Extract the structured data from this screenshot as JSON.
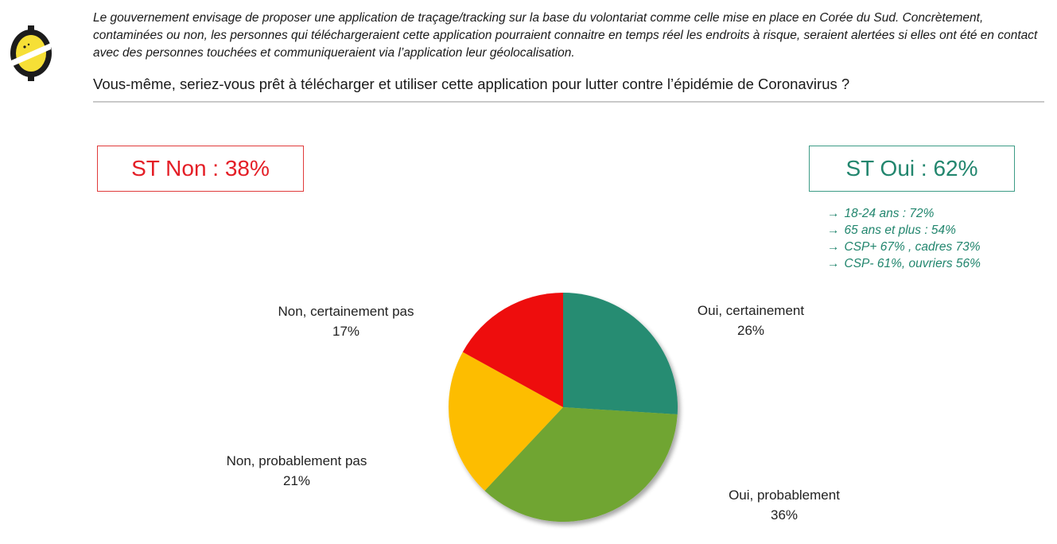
{
  "header": {
    "context_text": "Le gouvernement envisage de proposer une application de traçage/tracking sur la base du volontariat comme celle mise en place en Corée du Sud. Concrètement, contaminées ou non, les personnes qui téléchargeraient cette application pourraient connaitre en temps réel les endroits à risque, seraient alertées si elles ont été en contact avec des personnes touchées et communiqueraient via l’application leur géolocalisation.",
    "question": "Vous-même, seriez-vous prêt à télécharger et utiliser cette application pour lutter contre l’épidémie de Coronavirus ?"
  },
  "summary": {
    "st_non": "ST Non : 38%",
    "st_oui": "ST Oui : 62%",
    "oui_details": [
      "18-24 ans : 72%",
      "65 ans et plus : 54%",
      "CSP+ 67% , cadres 73%",
      "CSP- 61%, ouvriers 56%"
    ],
    "arrow_icon": "right-arrow-icon"
  },
  "colors": {
    "non_accent": "#e41e26",
    "oui_accent": "#22866e"
  },
  "logo": {
    "icon": "yellow-badge-logo-icon"
  },
  "chart_data": {
    "type": "pie",
    "unit": "%",
    "start_angle_deg": 0,
    "direction": "clockwise",
    "slices": [
      {
        "label": "Oui, certainement",
        "value": 26,
        "value_label": "26%",
        "color": "#268c72"
      },
      {
        "label": "Oui, probablement",
        "value": 36,
        "value_label": "36%",
        "color": "#6fa531"
      },
      {
        "label": "Non, probablement pas",
        "value": 21,
        "value_label": "21%",
        "color": "#fdbd00"
      },
      {
        "label": "Non, certainement pas",
        "value": 17,
        "value_label": "17%",
        "color": "#ee1111"
      }
    ]
  }
}
